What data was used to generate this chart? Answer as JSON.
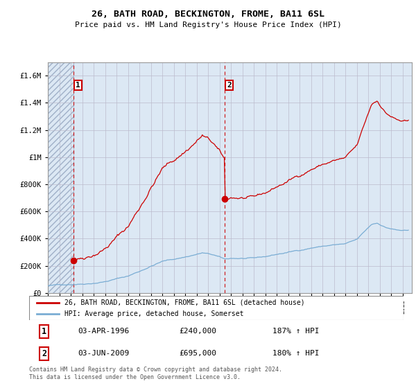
{
  "title": "26, BATH ROAD, BECKINGTON, FROME, BA11 6SL",
  "subtitle": "Price paid vs. HM Land Registry's House Price Index (HPI)",
  "legend_line1": "26, BATH ROAD, BECKINGTON, FROME, BA11 6SL (detached house)",
  "legend_line2": "HPI: Average price, detached house, Somerset",
  "annotation1_date": "03-APR-1996",
  "annotation1_price": "£240,000",
  "annotation1_hpi": "187% ↑ HPI",
  "annotation2_date": "03-JUN-2009",
  "annotation2_price": "£695,000",
  "annotation2_hpi": "180% ↑ HPI",
  "footer": "Contains HM Land Registry data © Crown copyright and database right 2024.\nThis data is licensed under the Open Government Licence v3.0.",
  "red_color": "#cc0000",
  "blue_color": "#7aadd4",
  "hatch_color": "#c8d4e8",
  "bg_color": "#dce8f4",
  "ylim": [
    0,
    1700000
  ],
  "xlim_start": 1994.0,
  "xlim_end": 2025.8,
  "sale1_x": 1996.25,
  "sale1_y": 240000,
  "sale2_x": 2009.42,
  "sale2_y": 695000
}
